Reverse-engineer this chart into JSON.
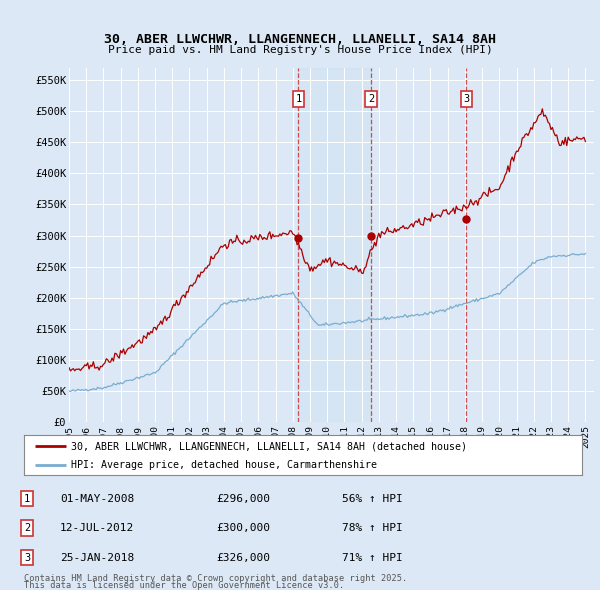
{
  "title": "30, ABER LLWCHWR, LLANGENNECH, LLANELLI, SA14 8AH",
  "subtitle": "Price paid vs. HM Land Registry's House Price Index (HPI)",
  "background_color": "#dce8f5",
  "plot_bg_color": "#dce8f5",
  "yticks": [
    0,
    50000,
    100000,
    150000,
    200000,
    250000,
    300000,
    350000,
    400000,
    450000,
    500000,
    550000
  ],
  "ytick_labels": [
    "£0",
    "£50K",
    "£100K",
    "£150K",
    "£200K",
    "£250K",
    "£300K",
    "£350K",
    "£400K",
    "£450K",
    "£500K",
    "£550K"
  ],
  "xlim_start": 1995.0,
  "xlim_end": 2025.5,
  "ylim_max": 570000,
  "sale_dates": [
    2008.33,
    2012.54,
    2018.08
  ],
  "sale_prices": [
    296000,
    300000,
    326000
  ],
  "sale_labels": [
    "1",
    "2",
    "3"
  ],
  "sale_label_dates": [
    "01-MAY-2008",
    "12-JUL-2012",
    "25-JAN-2018"
  ],
  "sale_label_prices": [
    "£296,000",
    "£300,000",
    "£326,000"
  ],
  "sale_label_pct": [
    "56% ↑ HPI",
    "78% ↑ HPI",
    "71% ↑ HPI"
  ],
  "red_line_color": "#aa0000",
  "blue_line_color": "#7aadcf",
  "dashed_line_color": "#cc3333",
  "legend1": "30, ABER LLWCHWR, LLANGENNECH, LLANELLI, SA14 8AH (detached house)",
  "legend2": "HPI: Average price, detached house, Carmarthenshire",
  "footer1": "Contains HM Land Registry data © Crown copyright and database right 2025.",
  "footer2": "This data is licensed under the Open Government Licence v3.0.",
  "shading_between": [
    0,
    1
  ],
  "hpi_years_start": 1995.0,
  "hpi_years_step": 0.0833
}
